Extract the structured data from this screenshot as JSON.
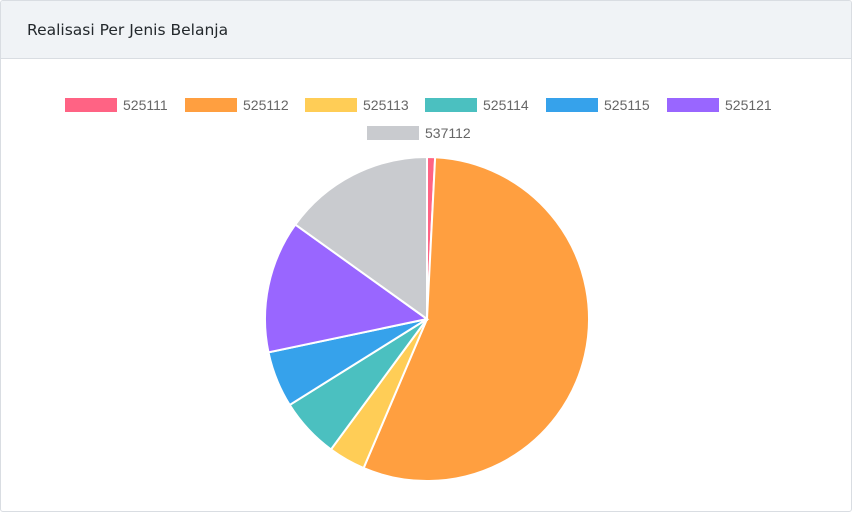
{
  "card": {
    "title": "Realisasi Per Jenis Belanja"
  },
  "chart_data": {
    "type": "pie",
    "title": "",
    "legend_position": "top",
    "categories": [
      "525111",
      "525112",
      "525113",
      "525114",
      "525115",
      "525121",
      "537112"
    ],
    "values": [
      0.8,
      55.6,
      3.7,
      6.0,
      5.6,
      13.2,
      15.1
    ],
    "colors": [
      "#ff6384",
      "#ff9f40",
      "#ffcd56",
      "#4bc0c0",
      "#36a2eb",
      "#9966ff",
      "#c9cbcf"
    ]
  }
}
